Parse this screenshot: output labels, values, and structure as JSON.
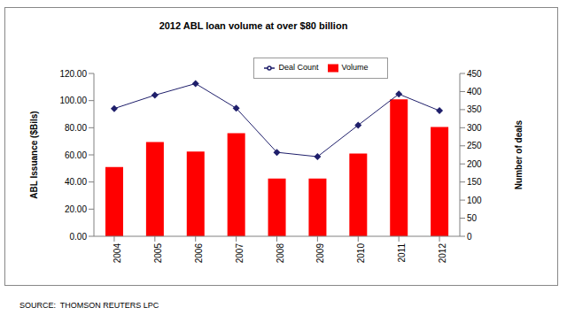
{
  "chart_data": {
    "type": "bar",
    "title": "2012 ABL loan volume at over $80 billion",
    "source": "SOURCE:  THOMSON REUTERS LPC",
    "y_label": "ABL Issuance ($Bils)",
    "y2_label": "Number of deals",
    "categories": [
      "2004",
      "2005",
      "2006",
      "2007",
      "2008",
      "2009",
      "2010",
      "2011",
      "2012"
    ],
    "series": [
      {
        "name": "Volume",
        "type": "bar",
        "color": "#ff0000",
        "values": [
          51,
          69.5,
          62.5,
          76,
          42.5,
          42.5,
          61,
          101,
          80.5
        ]
      },
      {
        "name": "Deal Count",
        "type": "line",
        "axis": "y2",
        "color": "#1f1f6b",
        "marker": "diamond",
        "values": [
          353,
          390,
          422,
          354,
          232,
          220,
          307,
          393,
          347
        ]
      }
    ],
    "ylim": [
      0,
      120
    ],
    "yticks": [
      {
        "value": 0,
        "label": "0.00"
      },
      {
        "value": 20,
        "label": "20.00"
      },
      {
        "value": 40,
        "label": "40.00"
      },
      {
        "value": 60,
        "label": "60.00"
      },
      {
        "value": 80,
        "label": "80.00"
      },
      {
        "value": 100,
        "label": "100.00"
      },
      {
        "value": 120,
        "label": "120.00"
      }
    ],
    "y2lim": [
      0,
      450
    ],
    "y2ticks": [
      0,
      50,
      100,
      150,
      200,
      250,
      300,
      350,
      400,
      450
    ],
    "grid": false,
    "legend": "top"
  }
}
